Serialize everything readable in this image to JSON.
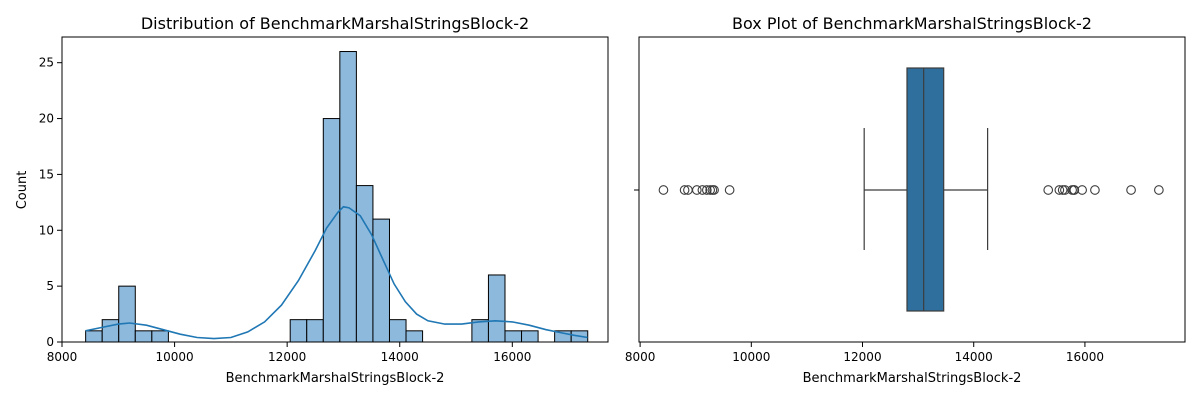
{
  "chart_data": [
    {
      "type": "bar",
      "title": "Distribution of BenchmarkMarshalStringsBlock-2",
      "xlabel": "BenchmarkMarshalStringsBlock-2",
      "ylabel": "Count",
      "xlim": [
        8000,
        17700
      ],
      "ylim": [
        0,
        27.3
      ],
      "xticks": [
        8000,
        10000,
        12000,
        14000,
        16000
      ],
      "yticks": [
        0,
        5,
        10,
        15,
        20,
        25
      ],
      "bar_color": "#8db9dc",
      "bar_edge_color": "#000000",
      "kde_color": "#1f77b4",
      "bins": [
        {
          "x0": 8420,
          "x1": 8714,
          "count": 1
        },
        {
          "x0": 8714,
          "x1": 9008,
          "count": 2
        },
        {
          "x0": 9008,
          "x1": 9302,
          "count": 5
        },
        {
          "x0": 9302,
          "x1": 9596,
          "count": 1
        },
        {
          "x0": 9596,
          "x1": 9890,
          "count": 1
        },
        {
          "x0": 12054,
          "x1": 12348,
          "count": 2
        },
        {
          "x0": 12348,
          "x1": 12642,
          "count": 2
        },
        {
          "x0": 12642,
          "x1": 12936,
          "count": 20
        },
        {
          "x0": 12936,
          "x1": 13230,
          "count": 26
        },
        {
          "x0": 13230,
          "x1": 13524,
          "count": 14
        },
        {
          "x0": 13524,
          "x1": 13818,
          "count": 11
        },
        {
          "x0": 13818,
          "x1": 14112,
          "count": 2
        },
        {
          "x0": 14112,
          "x1": 14406,
          "count": 1
        },
        {
          "x0": 15282,
          "x1": 15576,
          "count": 2
        },
        {
          "x0": 15576,
          "x1": 15870,
          "count": 6
        },
        {
          "x0": 15870,
          "x1": 16164,
          "count": 1
        },
        {
          "x0": 16164,
          "x1": 16458,
          "count": 1
        },
        {
          "x0": 16752,
          "x1": 17046,
          "count": 1
        },
        {
          "x0": 17046,
          "x1": 17340,
          "count": 1
        }
      ],
      "kde": {
        "x": [
          8420,
          8700,
          9000,
          9200,
          9500,
          9800,
          10100,
          10400,
          10700,
          11000,
          11300,
          11600,
          11900,
          12200,
          12500,
          12700,
          12900,
          13000,
          13100,
          13300,
          13500,
          13700,
          13900,
          14100,
          14300,
          14500,
          14800,
          15100,
          15400,
          15700,
          16000,
          16300,
          16600,
          16900,
          17100,
          17340
        ],
        "y": [
          1.0,
          1.3,
          1.6,
          1.7,
          1.5,
          1.1,
          0.7,
          0.4,
          0.3,
          0.4,
          0.9,
          1.8,
          3.3,
          5.5,
          8.2,
          10.2,
          11.6,
          12.1,
          12.0,
          11.3,
          9.6,
          7.4,
          5.2,
          3.6,
          2.5,
          1.9,
          1.6,
          1.6,
          1.8,
          1.9,
          1.8,
          1.5,
          1.1,
          0.8,
          0.6,
          0.4
        ]
      }
    },
    {
      "type": "box",
      "title": "Box Plot of BenchmarkMarshalStringsBlock-2",
      "xlabel": "BenchmarkMarshalStringsBlock-2",
      "xlim": [
        7980,
        17800
      ],
      "xticks": [
        8000,
        10000,
        12000,
        14000,
        16000
      ],
      "box_color": "#2e6f9e",
      "stats": {
        "whisker_low": 12030,
        "q1": 12800,
        "median": 13100,
        "q3": 13460,
        "whisker_high": 14250
      },
      "outliers": [
        8420,
        8800,
        8860,
        9020,
        9120,
        9200,
        9260,
        9300,
        9330,
        9610,
        15340,
        15540,
        15600,
        15640,
        15770,
        15800,
        15810,
        15950,
        16180,
        16830,
        17330
      ]
    }
  ]
}
